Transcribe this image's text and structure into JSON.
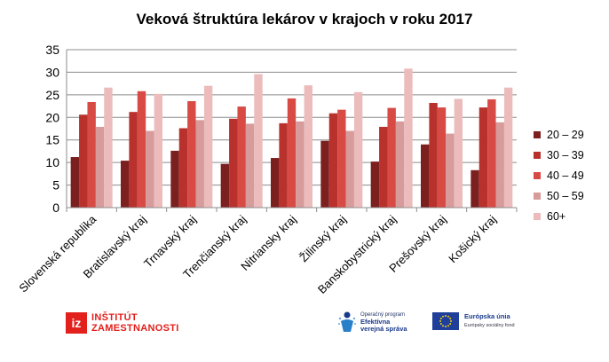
{
  "chart_data": {
    "type": "bar",
    "title": "Veková štruktúra  lekárov v krajoch v roku 2017",
    "categories": [
      "Slovenská republika",
      "Bratislavský kraj",
      "Trnavský kraj",
      "Trenčianský kraj",
      "Nitriansky kraj",
      "Žilinský kraj",
      "Banskobystrický kraj",
      "Prešovský kraj",
      "Košický kraj"
    ],
    "series": [
      {
        "name": "20 – 29",
        "color": "#7b1f1f",
        "values": [
          11.2,
          10.4,
          12.6,
          9.7,
          11.0,
          14.8,
          10.2,
          14.0,
          8.3
        ]
      },
      {
        "name": "30 – 39",
        "color": "#b8312c",
        "values": [
          20.6,
          21.2,
          17.6,
          19.7,
          18.7,
          20.9,
          17.9,
          23.2,
          22.2
        ]
      },
      {
        "name": "40 – 49",
        "color": "#d84a44",
        "values": [
          23.4,
          25.8,
          23.6,
          22.4,
          24.2,
          21.7,
          22.1,
          22.2,
          24.0
        ]
      },
      {
        "name": "50 – 59",
        "color": "#d69b9a",
        "values": [
          17.9,
          17.0,
          19.4,
          18.6,
          19.1,
          17.0,
          19.1,
          16.4,
          18.9
        ]
      },
      {
        "name": "60+",
        "color": "#ecbcbc",
        "values": [
          26.6,
          25.2,
          27.0,
          29.6,
          27.1,
          25.6,
          30.8,
          24.1,
          26.6
        ]
      }
    ],
    "ylim": [
      0,
      35
    ],
    "yticks": [
      0,
      5,
      10,
      15,
      20,
      25,
      30,
      35
    ],
    "grid": true,
    "legend": "right"
  },
  "footer": {
    "iz_mark": "iz",
    "iz_line1": "INŠTITÚT",
    "iz_line2": "ZAMESTNANOSTI",
    "op_line1": "Operačný program",
    "op_line2": "Efektívna",
    "op_line3": "verejná správa",
    "eu_line1": "Európska únia",
    "eu_line2": "Európsky sociálny fond"
  }
}
